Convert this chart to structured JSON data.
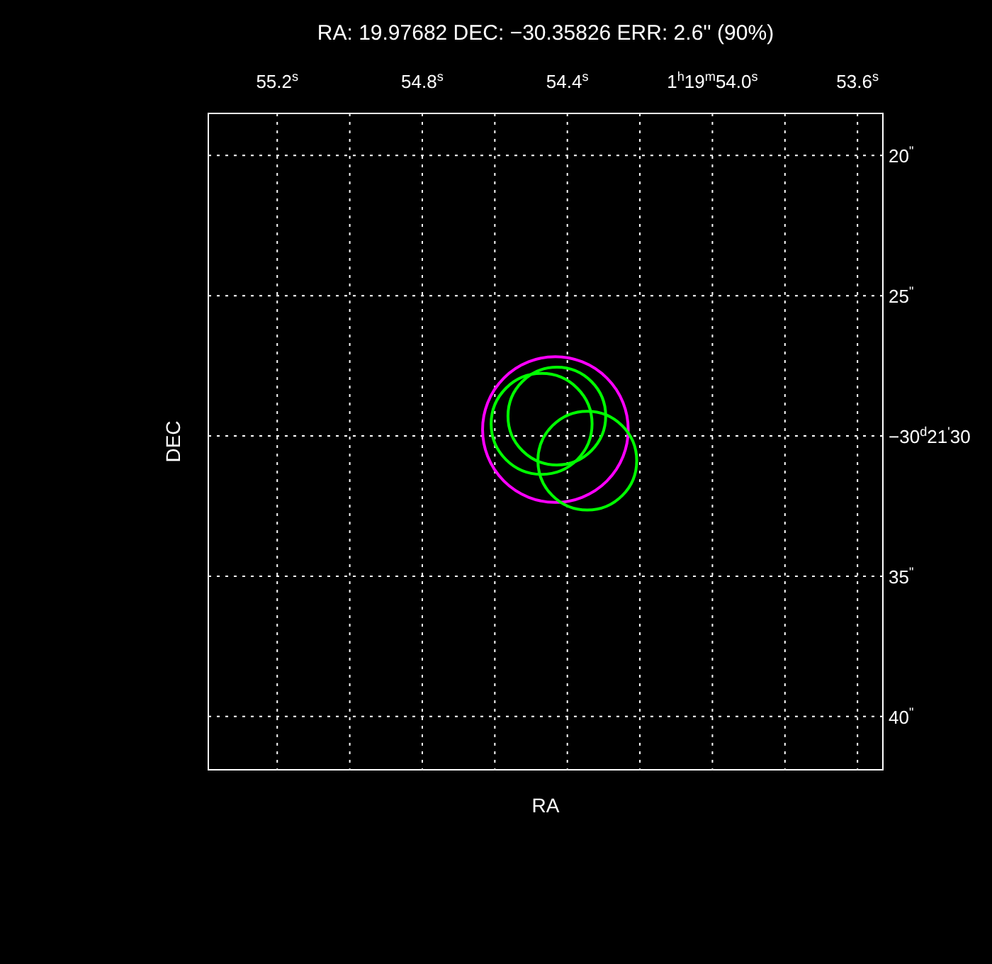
{
  "chart_data": {
    "type": "bubble",
    "title": "RA: 19.97682   DEC: −30.35826   ERR: 2.6'' (90%)",
    "xlabel": "RA",
    "ylabel": "DEC",
    "xlim": [
      55.39,
      53.53
    ],
    "xticks": [
      {
        "value": 55.2,
        "label": "55.2$^{s}$"
      },
      {
        "value": 55.0,
        "label": null
      },
      {
        "value": 54.8,
        "label": "54.8$^{s}$"
      },
      {
        "value": 54.6,
        "label": null
      },
      {
        "value": 54.4,
        "label": "54.4$^{s}$"
      },
      {
        "value": 54.2,
        "label": null
      },
      {
        "value": 54.0,
        "label": "1$^{h}$19$^{m}$54.0$^{s}$"
      },
      {
        "value": 53.8,
        "label": null
      },
      {
        "value": 53.6,
        "label": "53.6$^{s}$"
      }
    ],
    "ylim": [
      41.9,
      18.5
    ],
    "yticks": [
      {
        "value": 20,
        "label": "20$^{\"}$"
      },
      {
        "value": 25,
        "label": "25$^{\"}$"
      },
      {
        "value": 30,
        "label": "−30$^{d}$21$^{'}$30"
      },
      {
        "value": 35,
        "label": "35$^{\"}$"
      },
      {
        "value": 40,
        "label": "40$^{\"}$"
      }
    ],
    "grid": true,
    "series": [
      {
        "color": "#ff00ff",
        "x": [
          54.433
        ],
        "values": [
          29.77
        ],
        "sizes": [
          1
        ]
      },
      {
        "color": "#00ff00",
        "x": [
          54.471,
          54.429,
          54.345
        ],
        "values": [
          29.57,
          29.29,
          30.88
        ],
        "sizes": [
          0.48,
          0.45,
          0.46
        ]
      }
    ]
  }
}
